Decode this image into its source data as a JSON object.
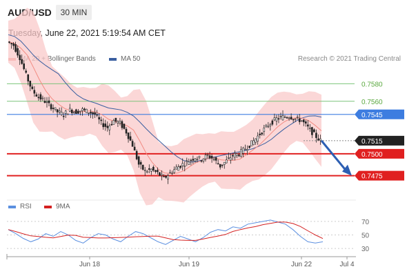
{
  "header": {
    "symbol": "AUD/USD",
    "timeframe": "30 MIN",
    "datetime": "Tuesday, June 22, 2021 5:19:54 AM CET"
  },
  "legend": {
    "ma20_label": "MA 20 + Bollinger Bands",
    "ma50_label": "MA 50",
    "rsi_label": "RSI",
    "ma9_label": "9MA",
    "copyright": "Research © 2021 Trading Central"
  },
  "colors": {
    "ma20": "#f28b82",
    "bollinger_fill": "#f9c9c9",
    "ma50": "#3a5fa0",
    "green_level": "#7cc47a",
    "blue_level": "#3d7de0",
    "red_level": "#e02020",
    "current_price_bg": "#222222",
    "rsi_line": "#5b8fe0",
    "rsi_ma": "#d42020",
    "candle": "#222222"
  },
  "chart_data": {
    "type": "candlestick",
    "price_axis": {
      "min": 0.7455,
      "max": 0.76
    },
    "levels": [
      {
        "value": 0.758,
        "label": "0.7580",
        "style": "green-line"
      },
      {
        "value": 0.756,
        "label": "0.7560",
        "style": "green-line"
      },
      {
        "value": 0.7545,
        "label": "0.7545",
        "style": "blue-line"
      },
      {
        "value": 0.7515,
        "label": "0.7515",
        "style": "current-price"
      },
      {
        "value": 0.75,
        "label": "0.7500",
        "style": "red-line"
      },
      {
        "value": 0.7475,
        "label": "0.7475",
        "style": "red-line"
      }
    ],
    "x_tick_labels": [
      "Jun 18",
      "Jun 19",
      "Jun 22",
      "Jul 4"
    ],
    "close_path": [
      0.7628,
      0.7624,
      0.761,
      0.759,
      0.7572,
      0.7565,
      0.756,
      0.7554,
      0.7548,
      0.7545,
      0.755,
      0.7548,
      0.755,
      0.7548,
      0.7545,
      0.7535,
      0.753,
      0.7538,
      0.7535,
      0.7525,
      0.751,
      0.7488,
      0.748,
      0.7482,
      0.7478,
      0.7472,
      0.7478,
      0.7484,
      0.7488,
      0.7492,
      0.7496,
      0.7494,
      0.7498,
      0.7494,
      0.7486,
      0.7492,
      0.7498,
      0.75,
      0.7506,
      0.7512,
      0.752,
      0.7528,
      0.7535,
      0.754,
      0.7542,
      0.7543,
      0.754,
      0.7538,
      0.753,
      0.7522,
      0.7515
    ],
    "rsi": {
      "axis_ticks": [
        "70",
        "50",
        "30"
      ],
      "ylim": [
        20,
        75
      ],
      "values": [
        58,
        52,
        45,
        40,
        44,
        52,
        48,
        55,
        50,
        42,
        38,
        46,
        52,
        50,
        44,
        40,
        48,
        55,
        52,
        46,
        40,
        36,
        42,
        48,
        44,
        40,
        46,
        54,
        58,
        56,
        62,
        60,
        66,
        68,
        70,
        72,
        69,
        66,
        58,
        48,
        40,
        38,
        40
      ]
    },
    "projection": {
      "from": 0.7515,
      "to": 0.7475
    }
  }
}
